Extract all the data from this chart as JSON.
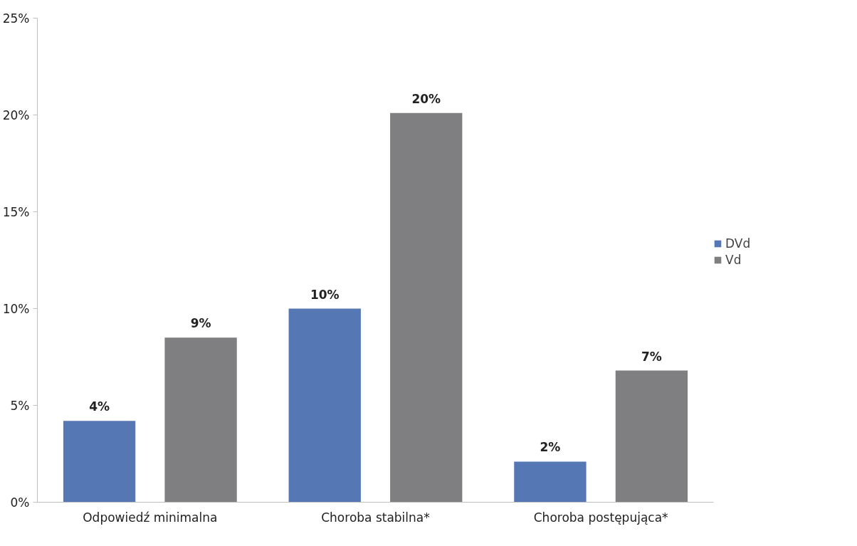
{
  "chart_data": {
    "type": "bar",
    "categories": [
      "Odpowiedź minimalna",
      "Choroba stabilna*",
      "Choroba postępująca*"
    ],
    "series": [
      {
        "name": "DVd",
        "color": "#5577b4",
        "values": [
          4.2,
          10.0,
          2.1
        ],
        "value_labels": [
          "4%",
          "10%",
          "2%"
        ]
      },
      {
        "name": "Vd",
        "color": "#7f7f82",
        "values": [
          8.5,
          20.1,
          6.8
        ],
        "value_labels": [
          "9%",
          "20%",
          "7%"
        ]
      }
    ],
    "ylim": [
      0,
      25
    ],
    "yticks": [
      {
        "value": 0,
        "label": "0%"
      },
      {
        "value": 5,
        "label": "5%"
      },
      {
        "value": 10,
        "label": "10%"
      },
      {
        "value": 15,
        "label": "15%"
      },
      {
        "value": 20,
        "label": "20%"
      },
      {
        "value": 25,
        "label": "25%"
      }
    ],
    "grid": false,
    "legend": "right"
  }
}
